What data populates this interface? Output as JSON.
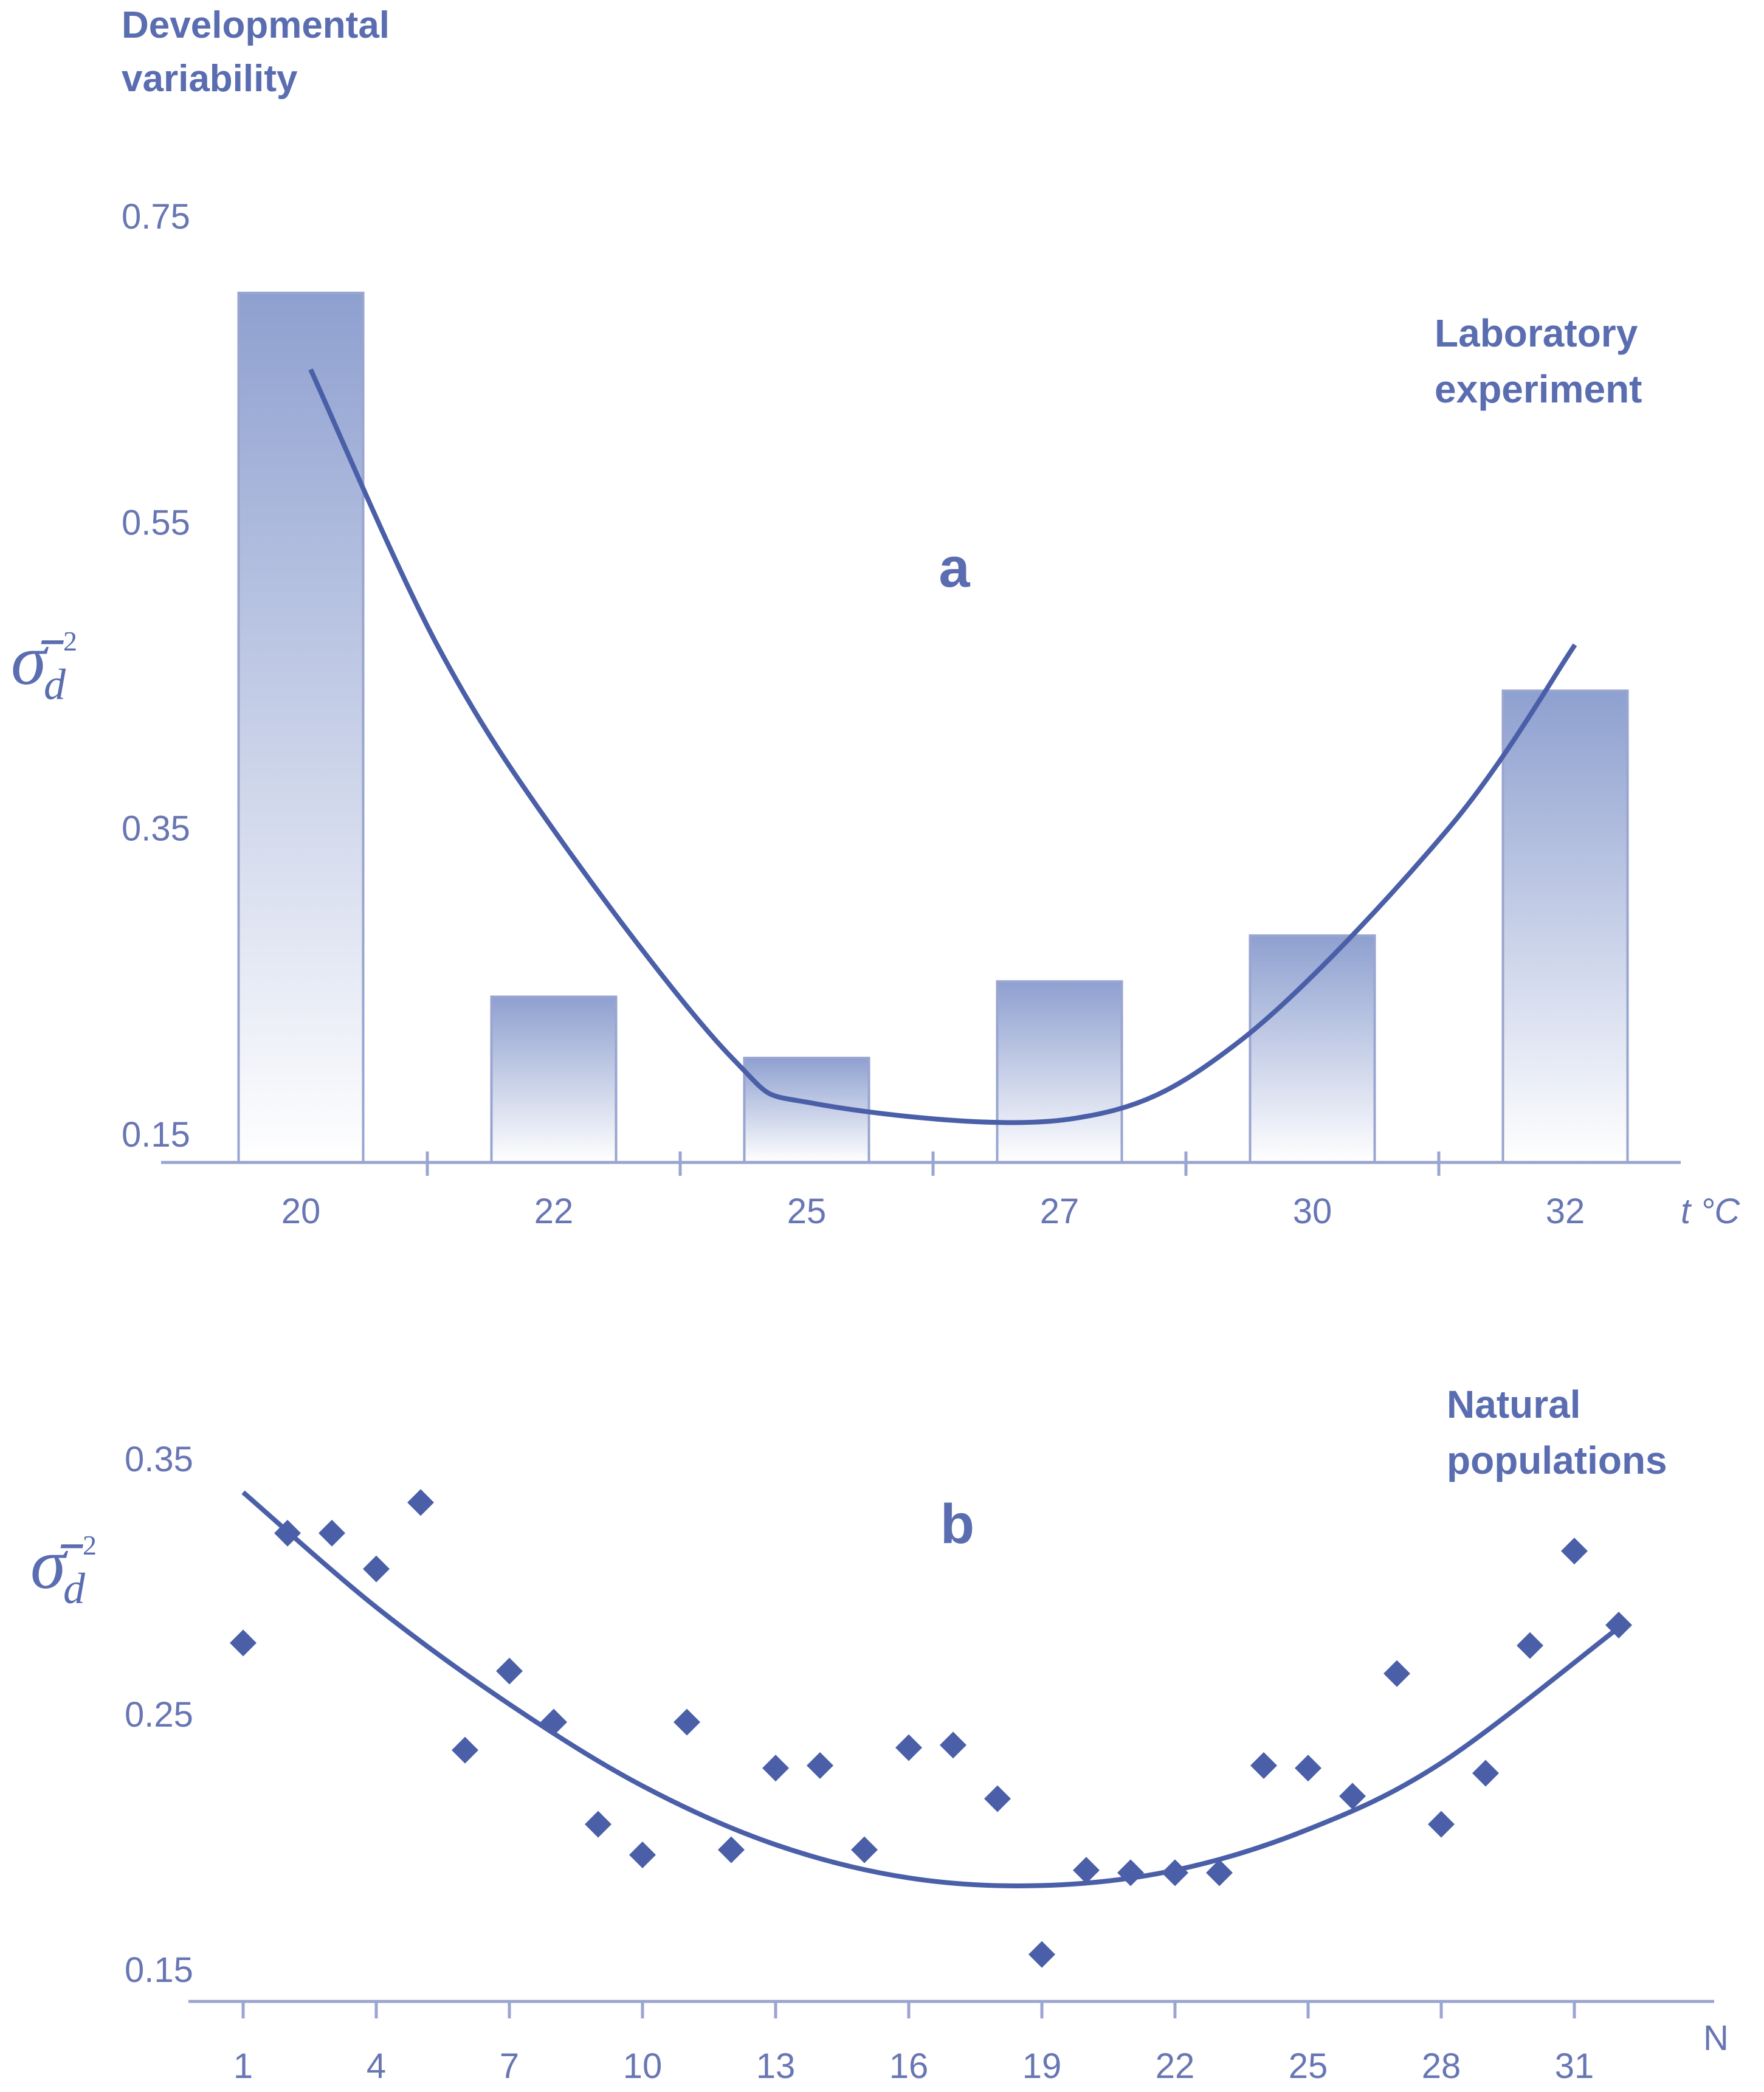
{
  "header": {
    "line1": "Developmental",
    "line2": "variability"
  },
  "colors": {
    "accent": "#4a5fa8",
    "axis": "#9aa5d0",
    "text": "#5a6db0",
    "bar_top": "#8ea0d0",
    "bar_bottom": "#ffffff"
  },
  "symbol": {
    "mean_variance": "σ̄",
    "subscript": "d",
    "superscript": "2"
  },
  "chart_data": [
    {
      "id": "a",
      "type": "bar",
      "panel_label": "a",
      "annotation": [
        "Laboratory",
        "experiment"
      ],
      "xlabel": "t °C",
      "ylabel": "σ̄d²",
      "categories": [
        "20",
        "22",
        "25",
        "27",
        "30",
        "32"
      ],
      "values": [
        0.7,
        0.24,
        0.2,
        0.25,
        0.28,
        0.44
      ],
      "y_ticks": [
        "0.15",
        "0.35",
        "0.55",
        "0.75"
      ],
      "ylim": [
        0.15,
        0.75
      ],
      "trend": {
        "type": "quadratic",
        "points": [
          {
            "x": 20,
            "y": 0.65
          },
          {
            "x": 21,
            "y": 0.47
          },
          {
            "x": 22,
            "y": 0.34
          },
          {
            "x": 24,
            "y": 0.2
          },
          {
            "x": 25,
            "y": 0.17
          },
          {
            "x": 27,
            "y": 0.16
          },
          {
            "x": 29,
            "y": 0.21
          },
          {
            "x": 31,
            "y": 0.35
          },
          {
            "x": 32,
            "y": 0.47
          }
        ]
      },
      "grid": false
    },
    {
      "id": "b",
      "type": "scatter",
      "panel_label": "b",
      "annotation": [
        "Natural",
        "populations"
      ],
      "xlabel": "N",
      "ylabel": "σ̄d²",
      "x_ticks": [
        "1",
        "4",
        "7",
        "10",
        "13",
        "16",
        "19",
        "22",
        "25",
        "28",
        "31"
      ],
      "y_ticks": [
        "0.15",
        "0.25",
        "0.35"
      ],
      "xlim": [
        1,
        32
      ],
      "ylim": [
        0.15,
        0.35
      ],
      "points": [
        {
          "x": 1,
          "y": 0.278
        },
        {
          "x": 2,
          "y": 0.321
        },
        {
          "x": 3,
          "y": 0.321
        },
        {
          "x": 4,
          "y": 0.307
        },
        {
          "x": 5,
          "y": 0.333
        },
        {
          "x": 6,
          "y": 0.236
        },
        {
          "x": 7,
          "y": 0.267
        },
        {
          "x": 8,
          "y": 0.247
        },
        {
          "x": 9,
          "y": 0.207
        },
        {
          "x": 10,
          "y": 0.195
        },
        {
          "x": 11,
          "y": 0.247
        },
        {
          "x": 12,
          "y": 0.197
        },
        {
          "x": 13,
          "y": 0.229
        },
        {
          "x": 14,
          "y": 0.23
        },
        {
          "x": 15,
          "y": 0.197
        },
        {
          "x": 16,
          "y": 0.237
        },
        {
          "x": 17,
          "y": 0.238
        },
        {
          "x": 18,
          "y": 0.217
        },
        {
          "x": 19,
          "y": 0.156
        },
        {
          "x": 20,
          "y": 0.189
        },
        {
          "x": 21,
          "y": 0.188
        },
        {
          "x": 22,
          "y": 0.188
        },
        {
          "x": 23,
          "y": 0.188
        },
        {
          "x": 24,
          "y": 0.23
        },
        {
          "x": 25,
          "y": 0.229
        },
        {
          "x": 26,
          "y": 0.218
        },
        {
          "x": 27,
          "y": 0.266
        },
        {
          "x": 28,
          "y": 0.207
        },
        {
          "x": 29,
          "y": 0.227
        },
        {
          "x": 30,
          "y": 0.277
        },
        {
          "x": 31,
          "y": 0.314
        },
        {
          "x": 32,
          "y": 0.285
        }
      ],
      "trend": {
        "type": "quadratic",
        "points": [
          {
            "x": 1,
            "y": 0.337
          },
          {
            "x": 4,
            "y": 0.292
          },
          {
            "x": 7,
            "y": 0.254
          },
          {
            "x": 10,
            "y": 0.222
          },
          {
            "x": 13,
            "y": 0.199
          },
          {
            "x": 16,
            "y": 0.186
          },
          {
            "x": 19,
            "y": 0.183
          },
          {
            "x": 22,
            "y": 0.189
          },
          {
            "x": 25,
            "y": 0.205
          },
          {
            "x": 28,
            "y": 0.231
          },
          {
            "x": 32,
            "y": 0.284
          }
        ]
      },
      "grid": false
    }
  ]
}
